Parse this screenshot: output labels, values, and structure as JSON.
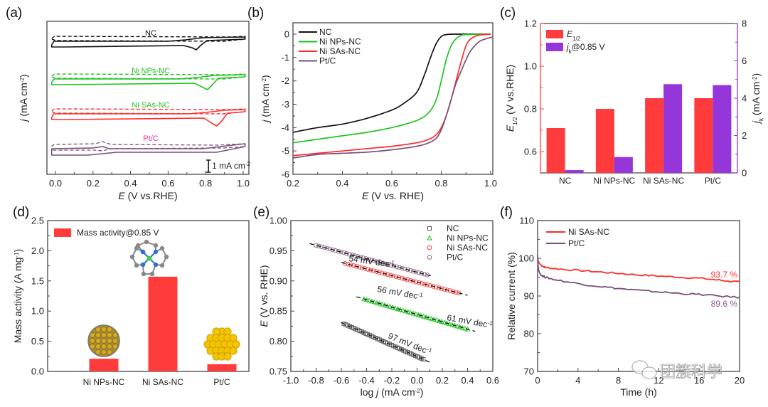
{
  "colors": {
    "NC": "#111111",
    "Ni NPs-NC": "#1fc21f",
    "Ni SAs-NC": "#ff2b2b",
    "Pt/C": "#7a4f78",
    "bar_red": "#ff3b3b",
    "bar_purple": "#9436d9",
    "pt_label": "#ff2f8c"
  },
  "watermark": "团簇科学",
  "chart_data": [
    {
      "panel": "(a)",
      "type": "line",
      "xlabel": "E (V vs.RHE)",
      "ylabel": "j (mA cm-2)",
      "xlim": [
        -0.03,
        1.02
      ],
      "xticks": [
        "0.0",
        "0.2",
        "0.4",
        "0.6",
        "0.8",
        "1.0"
      ],
      "scale_bar": "1 mA cm-2",
      "series": [
        {
          "name": "NC",
          "label_color": "#111111",
          "peak_E": 0.75,
          "style": "solid (O2) + dashed (N2) CV loops"
        },
        {
          "name": "Ni NPs-NC",
          "label_color": "#1fc21f",
          "peak_E": 0.81,
          "style": "solid (O2) + dashed (N2) CV loops"
        },
        {
          "name": "Ni SAs-NC",
          "label_color": "#1fc21f",
          "peak_E": 0.86,
          "style": "solid (O2) + dashed (N2) CV loops"
        },
        {
          "name": "Pt/C",
          "label_color": "#ff2f8c",
          "peak_E": 0.25,
          "style": "solid (O2) + dashed (N2) CV loops"
        }
      ]
    },
    {
      "panel": "(b)",
      "type": "line",
      "xlabel": "E (V vs. RHE)",
      "ylabel": "j (mA cm-2)",
      "xlim": [
        0.2,
        1.02
      ],
      "ylim": [
        -6,
        0.5
      ],
      "xticks": [
        "0.2",
        "0.4",
        "0.6",
        "0.8",
        "1.0"
      ],
      "yticks": [
        "0",
        "-1",
        "-2",
        "-3",
        "-4",
        "-5",
        "-6"
      ],
      "legend": "top-left",
      "series": [
        {
          "name": "NC",
          "x": [
            0.2,
            0.3,
            0.4,
            0.5,
            0.6,
            0.65,
            0.7,
            0.73,
            0.76,
            0.78,
            0.8,
            0.82,
            0.85,
            0.9,
            1.0
          ],
          "y": [
            -4.2,
            -4.0,
            -3.85,
            -3.6,
            -3.25,
            -2.95,
            -2.5,
            -1.8,
            -0.9,
            -0.4,
            -0.1,
            -0.02,
            0,
            0,
            0
          ]
        },
        {
          "name": "Ni NPs-NC",
          "x": [
            0.2,
            0.3,
            0.4,
            0.5,
            0.6,
            0.7,
            0.75,
            0.78,
            0.8,
            0.82,
            0.84,
            0.86,
            0.88,
            0.9,
            1.0
          ],
          "y": [
            -4.65,
            -4.5,
            -4.35,
            -4.2,
            -4.0,
            -3.7,
            -3.35,
            -2.8,
            -2.0,
            -1.1,
            -0.5,
            -0.2,
            -0.06,
            -0.02,
            0
          ]
        },
        {
          "name": "Ni SAs-NC",
          "x": [
            0.2,
            0.3,
            0.4,
            0.5,
            0.6,
            0.7,
            0.75,
            0.78,
            0.8,
            0.82,
            0.84,
            0.86,
            0.88,
            0.9,
            0.92,
            0.95,
            1.0
          ],
          "y": [
            -5.2,
            -5.1,
            -5.0,
            -4.9,
            -4.8,
            -4.65,
            -4.5,
            -4.3,
            -4.0,
            -3.5,
            -2.8,
            -2.0,
            -1.2,
            -0.5,
            -0.2,
            -0.05,
            0
          ]
        },
        {
          "name": "Pt/C",
          "x": [
            0.2,
            0.3,
            0.4,
            0.5,
            0.6,
            0.7,
            0.75,
            0.78,
            0.8,
            0.82,
            0.84,
            0.86,
            0.88,
            0.9,
            0.92,
            0.95,
            0.98,
            1.02
          ],
          "y": [
            -5.3,
            -5.15,
            -5.1,
            -5.05,
            -4.95,
            -4.8,
            -4.65,
            -4.45,
            -4.1,
            -3.5,
            -2.8,
            -2.1,
            -1.6,
            -1.1,
            -0.7,
            -0.35,
            -0.2,
            -0.1
          ]
        }
      ]
    },
    {
      "panel": "(c)",
      "type": "bar",
      "categories": [
        "NC",
        "Ni NPs-NC",
        "Ni SAs-NC",
        "Pt/C"
      ],
      "ylabel_left": "E1/2 (V vs.RHE)",
      "ylabel_right": "jk (mA cm-2)",
      "ylim_left": [
        0.5,
        1.2
      ],
      "ylim_right": [
        0,
        8
      ],
      "yticks_left": [
        "0.6",
        "0.8",
        "1.0",
        "1.2"
      ],
      "yticks_right": [
        "0",
        "2",
        "4",
        "6",
        "8"
      ],
      "legend": "top-left",
      "series": [
        {
          "name": "E1/2",
          "axis": "left",
          "values": [
            0.71,
            0.8,
            0.85,
            0.85
          ]
        },
        {
          "name": "jk@0.85 V",
          "axis": "right",
          "values": [
            0.15,
            0.85,
            4.75,
            4.7
          ]
        }
      ]
    },
    {
      "panel": "(d)",
      "type": "bar",
      "categories": [
        "Ni NPs-NC",
        "Ni SAs-NC",
        "Pt/C"
      ],
      "ylabel": "Mass activity (A mg-1)",
      "ylim": [
        0,
        2.5
      ],
      "yticks": [
        "0.0",
        "0.5",
        "1.0",
        "1.5",
        "2.0",
        "2.5"
      ],
      "legend": "top-left",
      "series": [
        {
          "name": "Mass activity@0.85 V",
          "values": [
            0.21,
            1.57,
            0.12
          ]
        }
      ],
      "insets": [
        "nanoparticle-sphere",
        "Ni-N4 single-atom structure",
        "Pt nanocluster"
      ]
    },
    {
      "panel": "(e)",
      "type": "scatter",
      "xlabel": "log j (mA cm-2)",
      "ylabel": "E (V vs. RHE)",
      "xlim": [
        -1.0,
        0.6
      ],
      "ylim": [
        0.75,
        1.0
      ],
      "xticks": [
        "-1.0",
        "-0.8",
        "-0.6",
        "-0.4",
        "-0.2",
        "0.0",
        "0.2",
        "0.4",
        "0.6"
      ],
      "yticks": [
        "0.75",
        "0.80",
        "0.85",
        "0.90",
        "0.95",
        "1.00"
      ],
      "legend": "top-right",
      "series": [
        {
          "name": "NC",
          "marker": "square",
          "x_range": [
            -0.58,
            0.05
          ],
          "y_range": [
            0.829,
            0.77
          ],
          "fit_x": [
            -0.6,
            0.1
          ],
          "slope_label": "97 mV dec-1"
        },
        {
          "name": "Ni NPs-NC",
          "marker": "triangle",
          "x_range": [
            -0.42,
            0.4
          ],
          "y_range": [
            0.87,
            0.82
          ],
          "fit_x": [
            -0.48,
            0.46
          ],
          "slope_label": "61 mV dec-1"
        },
        {
          "name": "Ni SAs-NC",
          "marker": "circle",
          "x_range": [
            -0.57,
            0.33
          ],
          "y_range": [
            0.929,
            0.88
          ],
          "fit_x": [
            -0.6,
            0.4
          ],
          "slope_label": "56 mV dec-1"
        },
        {
          "name": "Pt/C",
          "marker": "circle",
          "x_range": [
            -0.8,
            0.08
          ],
          "y_range": [
            0.959,
            0.91
          ],
          "fit_x": [
            -0.85,
            0.13
          ],
          "slope_label": "54 mV dec-1"
        }
      ]
    },
    {
      "panel": "(f)",
      "type": "line",
      "xlabel": "Time (h)",
      "ylabel": "Relative current (%)",
      "xlim": [
        0,
        20
      ],
      "ylim": [
        70,
        110
      ],
      "xticks": [
        "0",
        "4",
        "8",
        "12",
        "16",
        "20"
      ],
      "yticks": [
        "70",
        "80",
        "90",
        "100",
        "110"
      ],
      "legend": "top-left",
      "series": [
        {
          "name": "Ni SAs-NC",
          "x": [
            0,
            0.1,
            0.3,
            0.6,
            1,
            2,
            4,
            6,
            8,
            10,
            12,
            14,
            16,
            18,
            19,
            20
          ],
          "y": [
            100,
            99,
            98.3,
            97.8,
            97.5,
            97.2,
            96.8,
            96.4,
            96,
            95.6,
            95.3,
            95,
            94.7,
            94.2,
            93.9,
            93.7
          ],
          "end_label": "93.7 %"
        },
        {
          "name": "Pt/C",
          "x": [
            0,
            0.05,
            0.15,
            0.3,
            0.6,
            1,
            2,
            4,
            6,
            8,
            10,
            12,
            14,
            16,
            18,
            20
          ],
          "y": [
            101,
            98,
            96.5,
            95.7,
            95.2,
            94.8,
            94.2,
            93.3,
            92.6,
            92,
            91.5,
            91.1,
            90.7,
            90.4,
            90,
            89.6
          ],
          "end_label": "89.6 %"
        }
      ]
    }
  ]
}
